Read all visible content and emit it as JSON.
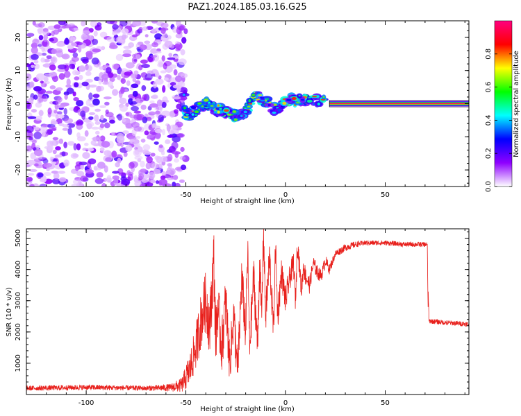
{
  "title": "PAZ1.2024.185.03.16.G25",
  "chart_data": [
    {
      "type": "heatmap",
      "xlabel": "Height of straight line (km)",
      "ylabel": "Frequency (Hz)",
      "xlim": [
        -130,
        92
      ],
      "ylim": [
        -25,
        25
      ],
      "xticks": [
        -100,
        -50,
        0,
        50
      ],
      "yticks": [
        -20,
        -10,
        0,
        10,
        20
      ],
      "grid": false,
      "colorbar": {
        "label": "Normalized spectral amplitude",
        "range": [
          0,
          1
        ],
        "ticks": [
          0.0,
          0.2,
          0.4,
          0.6,
          0.8
        ],
        "colormap": [
          "#ffffff",
          "#8f00ff",
          "#0000ff",
          "#00ffff",
          "#00ff00",
          "#ffff00",
          "#ff0000",
          "#ff007f"
        ]
      },
      "regions": [
        {
          "name": "noise",
          "x": [
            -130,
            -55
          ],
          "amplitude": "0.05-0.3"
        },
        {
          "name": "transition",
          "x": [
            -55,
            22
          ],
          "amplitude": "0.2-0.9",
          "frequency_track": [
            [
              -52,
              10
            ],
            [
              -50,
              -4
            ],
            [
              -40,
              0
            ],
            [
              -30,
              -3
            ],
            [
              -22,
              -4
            ],
            [
              -15,
              3
            ],
            [
              -5,
              -2
            ],
            [
              0,
              1
            ],
            [
              10,
              1
            ],
            [
              20,
              0.5
            ]
          ]
        },
        {
          "name": "tone",
          "x": [
            22,
            92
          ],
          "frequency": 0,
          "amplitude": "0.8-1.0"
        }
      ]
    },
    {
      "type": "line",
      "xlabel": "Height of straight line (km)",
      "ylabel": "SNR (10 * v/v)",
      "xlim": [
        -130,
        92
      ],
      "ylim": [
        0,
        5300
      ],
      "xticks": [
        -100,
        -50,
        0,
        50
      ],
      "yticks": [
        1000,
        2000,
        3000,
        4000,
        5000
      ],
      "grid": false,
      "series": [
        {
          "color": "#e8201c",
          "x": [
            -130,
            -100,
            -70,
            -58,
            -52,
            -48,
            -45,
            -42,
            -40,
            -38,
            -36,
            -35,
            -34,
            -32,
            -30,
            -28,
            -26,
            -24,
            -22,
            -20,
            -19,
            -18,
            -16,
            -14,
            -13,
            -12,
            -11,
            -10,
            -8,
            -6,
            -5,
            -4,
            -2,
            0,
            2,
            4,
            5,
            6,
            8,
            9,
            10,
            12,
            14,
            16,
            18,
            20,
            22,
            25,
            30,
            35,
            40,
            50,
            60,
            71,
            72,
            80,
            92
          ],
          "y": [
            200,
            230,
            200,
            220,
            300,
            800,
            1500,
            2500,
            3000,
            2200,
            4300,
            1800,
            2800,
            1500,
            3000,
            1000,
            2500,
            700,
            3700,
            2000,
            4600,
            1500,
            3800,
            1500,
            4200,
            2500,
            5200,
            2500,
            4400,
            2000,
            4900,
            2500,
            3900,
            3000,
            3700,
            4200,
            3000,
            4900,
            3300,
            4100,
            3800,
            3500,
            4200,
            3900,
            3800,
            4300,
            4000,
            4500,
            4700,
            4800,
            4850,
            4850,
            4800,
            4800,
            2350,
            2300,
            2250
          ],
          "noise_amplitude": [
            100,
            110,
            100,
            150,
            300,
            700,
            900,
            1200,
            1200,
            1200,
            1400,
            1200,
            1200,
            1100,
            1100,
            900,
            1000,
            800,
            1000,
            900,
            900,
            800,
            900,
            800,
            900,
            800,
            800,
            800,
            800,
            700,
            700,
            700,
            600,
            600,
            500,
            500,
            500,
            500,
            400,
            400,
            400,
            350,
            300,
            300,
            250,
            250,
            200,
            150,
            150,
            120,
            100,
            100,
            100,
            100,
            100,
            100,
            100
          ]
        }
      ]
    }
  ]
}
